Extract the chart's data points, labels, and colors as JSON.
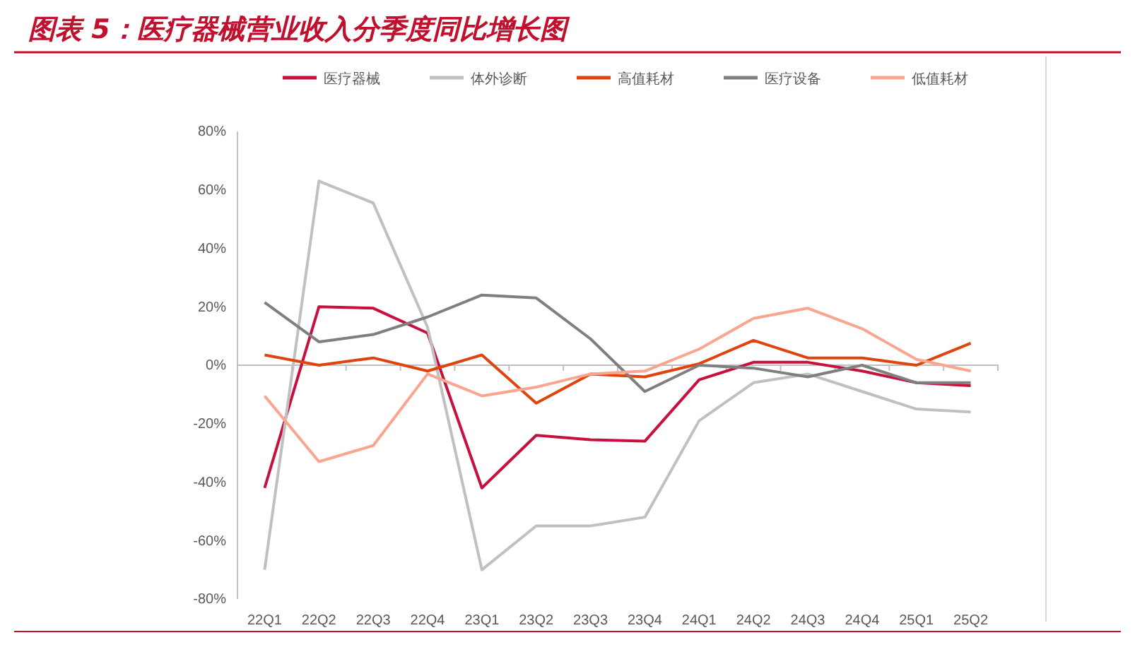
{
  "chart_data": {
    "type": "line",
    "title": "图表 5：医疗器械营业收入分季度同比增长图",
    "categories": [
      "22Q1",
      "22Q2",
      "22Q3",
      "22Q4",
      "23Q1",
      "23Q2",
      "23Q3",
      "23Q4",
      "24Q1",
      "24Q2",
      "24Q3",
      "24Q4",
      "25Q1",
      "25Q2"
    ],
    "series": [
      {
        "name": "医疗器械",
        "color": "#c8103f",
        "values": [
          -42,
          20,
          19.5,
          11,
          -42,
          -24,
          -25.5,
          -26,
          -5,
          1,
          1,
          -2,
          -6,
          -7
        ]
      },
      {
        "name": "体外诊断",
        "color": "#c0c0c0",
        "values": [
          -70,
          63,
          55.5,
          13,
          -70,
          -55,
          -55,
          -52,
          -19,
          -6,
          -3,
          -9,
          -15,
          -16
        ]
      },
      {
        "name": "高值耗材",
        "color": "#e0440e",
        "values": [
          3.5,
          0,
          2.5,
          -2,
          3.5,
          -13,
          -3,
          -4,
          0.5,
          8.5,
          2.5,
          2.5,
          0,
          7.5
        ]
      },
      {
        "name": "医疗设备",
        "color": "#7f7f7f",
        "values": [
          21.5,
          8,
          10.5,
          16.5,
          24,
          23,
          9,
          -9,
          0,
          -1,
          -4,
          0,
          -6,
          -6
        ]
      },
      {
        "name": "低值耗材",
        "color": "#f9a58f",
        "values": [
          -10.5,
          -33,
          -27.5,
          -3,
          -10.5,
          -7.5,
          -3,
          -2,
          5.5,
          16,
          19.5,
          12.5,
          2,
          -2
        ]
      }
    ],
    "ylim": [
      -80,
      80
    ],
    "yticks": [
      {
        "value": -80,
        "label": "-80%"
      },
      {
        "value": -60,
        "label": "-60%"
      },
      {
        "value": -40,
        "label": "-40%"
      },
      {
        "value": -20,
        "label": "-20%"
      },
      {
        "value": 0,
        "label": "0%"
      },
      {
        "value": 20,
        "label": "20%"
      },
      {
        "value": 40,
        "label": "40%"
      },
      {
        "value": 60,
        "label": "60%"
      },
      {
        "value": 80,
        "label": "80%"
      }
    ],
    "legend": "top",
    "marker": "none",
    "line_style": "solid",
    "grid": false
  }
}
